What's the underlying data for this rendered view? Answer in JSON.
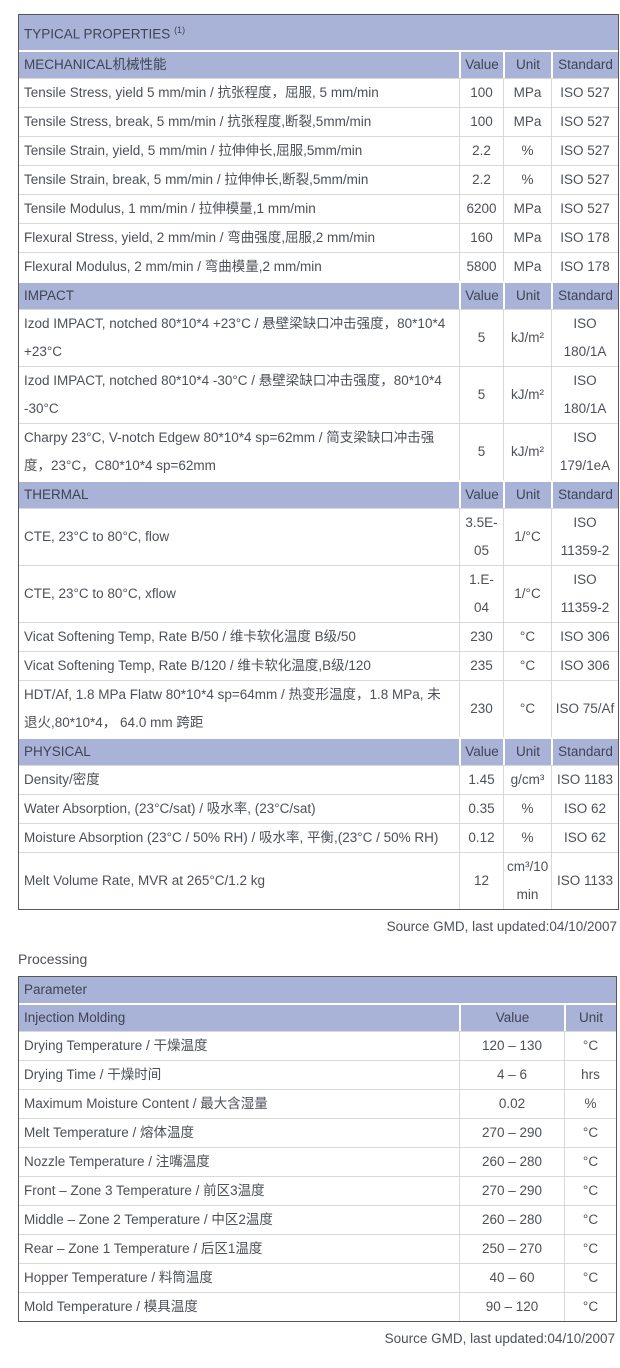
{
  "colors": {
    "header_bg": "#a9b3d8",
    "header_text": "#3f4451",
    "body_text": "#4c5058",
    "grid_line": "#d8d9db",
    "outer_border": "#55575c",
    "header_separator": "#ffffff"
  },
  "table1": {
    "title": "TYPICAL PROPERTIES",
    "title_sup": "(1)",
    "col_headers": [
      "Value",
      "Unit",
      "Standard"
    ],
    "sections": [
      {
        "name": "MECHANICAL机械性能",
        "rows": [
          {
            "label": "Tensile Stress, yield 5 mm/min / 抗张程度，屈服, 5 mm/min",
            "value": "100",
            "unit": "MPa",
            "std": "ISO 527"
          },
          {
            "label": "Tensile Stress, break, 5 mm/min / 抗张程度,断裂,5mm/min",
            "value": "100",
            "unit": "MPa",
            "std": "ISO 527"
          },
          {
            "label": "Tensile Strain, yield, 5 mm/min / 拉伸伸长,屈服,5mm/min",
            "value": "2.2",
            "unit": "%",
            "std": "ISO 527"
          },
          {
            "label": "Tensile Strain, break, 5 mm/min / 拉伸伸长,断裂,5mm/min",
            "value": "2.2",
            "unit": "%",
            "std": "ISO 527"
          },
          {
            "label": "Tensile Modulus, 1 mm/min / 拉伸模量,1 mm/min",
            "value": "6200",
            "unit": "MPa",
            "std": "ISO 527"
          },
          {
            "label": "Flexural Stress, yield, 2 mm/min / 弯曲强度,屈服,2 mm/min",
            "value": "160",
            "unit": "MPa",
            "std": "ISO 178"
          },
          {
            "label": "Flexural Modulus, 2 mm/min / 弯曲模量,2 mm/min",
            "value": "5800",
            "unit": "MPa",
            "std": "ISO 178"
          }
        ]
      },
      {
        "name": "IMPACT",
        "rows": [
          {
            "label": "Izod IMPACT, notched 80*10*4 +23°C / 悬壁梁缺口冲击强度，80*10*4 +23°C",
            "value": "5",
            "unit": "kJ/m²",
            "std": "ISO 180/1A"
          },
          {
            "label": "Izod IMPACT, notched 80*10*4 -30°C / 悬壁梁缺口冲击强度，80*10*4 -30°C",
            "value": "5",
            "unit": "kJ/m²",
            "std": "ISO 180/1A"
          },
          {
            "label": "Charpy 23°C, V-notch Edgew 80*10*4 sp=62mm / 简支梁缺口冲击强度，23°C，C80*10*4 sp=62mm",
            "value": "5",
            "unit": "kJ/m²",
            "std": "ISO 179/1eA"
          }
        ]
      },
      {
        "name": "THERMAL",
        "rows": [
          {
            "label": "CTE, 23°C to 80°C, flow",
            "value": "3.5E-05",
            "unit": "1/°C",
            "std": "ISO 11359-2"
          },
          {
            "label": "CTE, 23°C to 80°C, xflow",
            "value": "1.E-04",
            "unit": "1/°C",
            "std": "ISO 11359-2"
          },
          {
            "label": "Vicat Softening Temp, Rate B/50 / 维卡软化温度 B级/50",
            "value": "230",
            "unit": "°C",
            "std": "ISO 306"
          },
          {
            "label": "Vicat Softening Temp, Rate B/120 / 维卡软化温度,B级/120",
            "value": "235",
            "unit": "°C",
            "std": "ISO 306"
          },
          {
            "label": "HDT/Af, 1.8 MPa Flatw 80*10*4 sp=64mm / 热变形温度，1.8 MPa, 未退火,80*10*4， 64.0 mm 跨距",
            "value": "230",
            "unit": "°C",
            "std": "ISO 75/Af"
          }
        ]
      },
      {
        "name": "PHYSICAL",
        "rows": [
          {
            "label": "Density/密度",
            "value": "1.45",
            "unit": "g/cm³",
            "std": "ISO 1183"
          },
          {
            "label": "Water Absorption, (23°C/sat) / 吸水率, (23°C/sat)",
            "value": "0.35",
            "unit": "%",
            "std": "ISO 62"
          },
          {
            "label": "Moisture Absorption (23°C / 50% RH) / 吸水率, 平衡,(23°C / 50% RH)",
            "value": "0.12",
            "unit": "%",
            "std": "ISO 62"
          },
          {
            "label": "Melt Volume Rate, MVR at 265°C/1.2 kg",
            "value": "12",
            "unit": "cm³/10 min",
            "std": "ISO 1133"
          }
        ]
      }
    ],
    "source": "Source GMD, last updated:04/10/2007"
  },
  "processing": {
    "heading": "Processing",
    "table_header": "Parameter",
    "subheader": "Injection Molding",
    "col_headers": [
      "Value",
      "Unit"
    ],
    "rows": [
      {
        "label": "Drying Temperature / 干燥温度",
        "value": "120 – 130",
        "unit": "°C"
      },
      {
        "label": "Drying Time / 干燥时间",
        "value": "4 – 6",
        "unit": "hrs"
      },
      {
        "label": "Maximum Moisture Content / 最大含湿量",
        "value": "0.02",
        "unit": "%"
      },
      {
        "label": "Melt Temperature / 熔体温度",
        "value": "270 – 290",
        "unit": "°C"
      },
      {
        "label": "Nozzle Temperature / 注嘴温度",
        "value": "260 – 280",
        "unit": "°C"
      },
      {
        "label": "Front – Zone 3 Temperature / 前区3温度",
        "value": "270 – 290",
        "unit": "°C"
      },
      {
        "label": "Middle – Zone 2 Temperature / 中区2温度",
        "value": "260 – 280",
        "unit": "°C"
      },
      {
        "label": "Rear – Zone 1 Temperature / 后区1温度",
        "value": "250 – 270",
        "unit": "°C"
      },
      {
        "label": "Hopper Temperature / 料筒温度",
        "value": "40 – 60",
        "unit": "°C"
      },
      {
        "label": "Mold Temperature / 模具温度",
        "value": "90 – 120",
        "unit": "°C"
      }
    ],
    "source": "Source GMD, last updated:04/10/2007"
  }
}
